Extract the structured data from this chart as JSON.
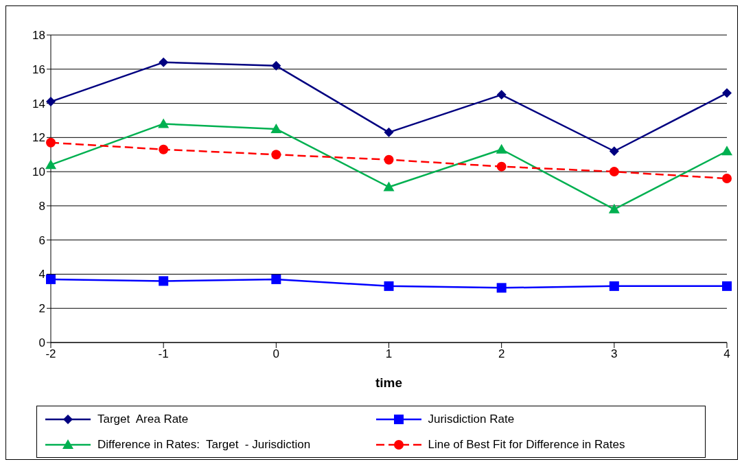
{
  "chart_data": {
    "type": "line",
    "xlabel": "time",
    "categories": [
      "-2",
      "-1",
      "0",
      "1",
      "2",
      "3",
      "4"
    ],
    "ylim": [
      0,
      18
    ],
    "yticks": [
      0,
      2,
      4,
      6,
      8,
      10,
      12,
      14,
      16,
      18
    ],
    "grid": "y",
    "legend": "bottom",
    "series": [
      {
        "name": "Target  Area Rate",
        "color": "#000080",
        "marker": "diamond",
        "line_style": "solid",
        "values": [
          14.1,
          16.4,
          16.2,
          12.3,
          14.5,
          11.2,
          14.6
        ]
      },
      {
        "name": "Jurisdiction Rate",
        "color": "#0000ff",
        "marker": "square",
        "line_style": "solid",
        "values": [
          3.7,
          3.6,
          3.7,
          3.3,
          3.2,
          3.3,
          3.3
        ]
      },
      {
        "name": "Difference in Rates:  Target  - Jurisdiction",
        "color": "#00b050",
        "marker": "triangle",
        "line_style": "solid",
        "values": [
          10.4,
          12.8,
          12.5,
          9.1,
          11.3,
          7.8,
          11.2
        ]
      },
      {
        "name": "Line of Best Fit for Difference in Rates",
        "color": "#ff0000",
        "marker": "circle",
        "line_style": "dashed",
        "values": [
          11.7,
          11.3,
          11.0,
          10.7,
          10.3,
          10.0,
          9.6
        ]
      }
    ]
  }
}
